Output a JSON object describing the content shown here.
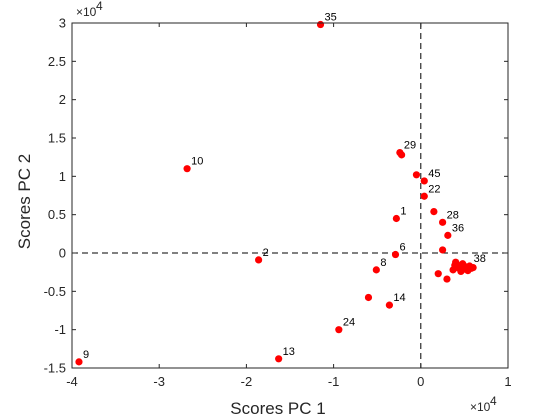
{
  "chart_data": {
    "type": "scatter",
    "title": "",
    "xlabel": "Scores PC 1",
    "ylabel": "Scores PC 2",
    "x_exponent_label": "×10",
    "y_exponent_label": "×10",
    "exponent_power": "4",
    "xlim": [
      -40000,
      10000
    ],
    "ylim": [
      -15000,
      30000
    ],
    "x_ticks": [
      -40000,
      -30000,
      -20000,
      -10000,
      0,
      10000
    ],
    "x_tick_labels": [
      "-4",
      "-3",
      "-2",
      "-1",
      "0",
      "1"
    ],
    "y_ticks": [
      -15000,
      -10000,
      -5000,
      0,
      5000,
      10000,
      15000,
      20000,
      25000,
      30000
    ],
    "y_tick_labels": [
      "-1.5",
      "-1",
      "-0.5",
      "0",
      "0.5",
      "1",
      "1.5",
      "2",
      "2.5",
      "3"
    ],
    "grid": false,
    "reference_lines": {
      "x": 0,
      "y": 0,
      "style": "dashed"
    },
    "marker_color": "#ff0000",
    "axis_color": "#262626",
    "points": [
      {
        "x": -11500,
        "y": 29800,
        "label": "35"
      },
      {
        "x": -26800,
        "y": 11000,
        "label": "10"
      },
      {
        "x": -2400,
        "y": 13100,
        "label": "29"
      },
      {
        "x": -2200,
        "y": 12800,
        "label": ""
      },
      {
        "x": -500,
        "y": 10200,
        "label": ""
      },
      {
        "x": 400,
        "y": 9400,
        "label": "45"
      },
      {
        "x": 400,
        "y": 7400,
        "label": "22"
      },
      {
        "x": -2800,
        "y": 4500,
        "label": "1"
      },
      {
        "x": 1500,
        "y": 5400,
        "label": ""
      },
      {
        "x": 2500,
        "y": 4000,
        "label": "28"
      },
      {
        "x": 3100,
        "y": 2300,
        "label": "36"
      },
      {
        "x": 2500,
        "y": 400,
        "label": ""
      },
      {
        "x": -2900,
        "y": -200,
        "label": "6"
      },
      {
        "x": -18600,
        "y": -900,
        "label": "2"
      },
      {
        "x": -5100,
        "y": -2200,
        "label": "8"
      },
      {
        "x": 5600,
        "y": -1700,
        "label": "38"
      },
      {
        "x": 4000,
        "y": -1200,
        "label": ""
      },
      {
        "x": 4200,
        "y": -1600,
        "label": ""
      },
      {
        "x": 4400,
        "y": -2000,
        "label": ""
      },
      {
        "x": 4600,
        "y": -2400,
        "label": ""
      },
      {
        "x": 4800,
        "y": -1400,
        "label": ""
      },
      {
        "x": 5000,
        "y": -2100,
        "label": ""
      },
      {
        "x": 5200,
        "y": -1800,
        "label": ""
      },
      {
        "x": 5400,
        "y": -2300,
        "label": ""
      },
      {
        "x": 5800,
        "y": -2000,
        "label": ""
      },
      {
        "x": 6000,
        "y": -1900,
        "label": ""
      },
      {
        "x": 3700,
        "y": -2200,
        "label": ""
      },
      {
        "x": 3900,
        "y": -1600,
        "label": ""
      },
      {
        "x": 2000,
        "y": -2700,
        "label": ""
      },
      {
        "x": 3000,
        "y": -3400,
        "label": ""
      },
      {
        "x": -6000,
        "y": -5800,
        "label": ""
      },
      {
        "x": -3600,
        "y": -6800,
        "label": "14"
      },
      {
        "x": -9400,
        "y": -10000,
        "label": "24"
      },
      {
        "x": -16300,
        "y": -13800,
        "label": "13"
      },
      {
        "x": -39200,
        "y": -14200,
        "label": "9"
      }
    ]
  }
}
